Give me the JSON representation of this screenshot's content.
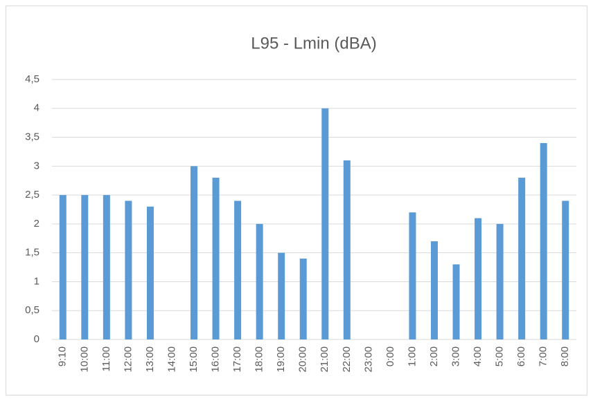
{
  "chart_data": {
    "type": "bar",
    "title": "L95 - Lmin (dBA)",
    "categories": [
      "9:10",
      "10:00",
      "11:00",
      "12:00",
      "13:00",
      "14:00",
      "15:00",
      "16:00",
      "17:00",
      "18:00",
      "19:00",
      "20:00",
      "21:00",
      "22:00",
      "23:00",
      "0:00",
      "1:00",
      "2:00",
      "3:00",
      "4:00",
      "5:00",
      "6:00",
      "7:00",
      "8:00"
    ],
    "values": [
      2.5,
      2.5,
      2.5,
      2.4,
      2.3,
      null,
      3.0,
      2.8,
      2.4,
      2.0,
      1.5,
      1.4,
      4.0,
      3.1,
      null,
      null,
      2.2,
      1.7,
      1.3,
      2.1,
      2.0,
      2.8,
      3.4,
      2.4
    ],
    "color": "#5b9bd5",
    "ylim": [
      0,
      4.5
    ],
    "yticks": [
      0,
      {
        "value": 0.5,
        "label": "0,5"
      },
      1,
      {
        "value": 1.5,
        "label": "1,5"
      },
      2,
      {
        "value": 2.5,
        "label": "2,5"
      },
      3,
      {
        "value": 3.5,
        "label": "3,5"
      },
      4,
      {
        "value": 4.5,
        "label": "4,5"
      }
    ],
    "grid": true
  }
}
